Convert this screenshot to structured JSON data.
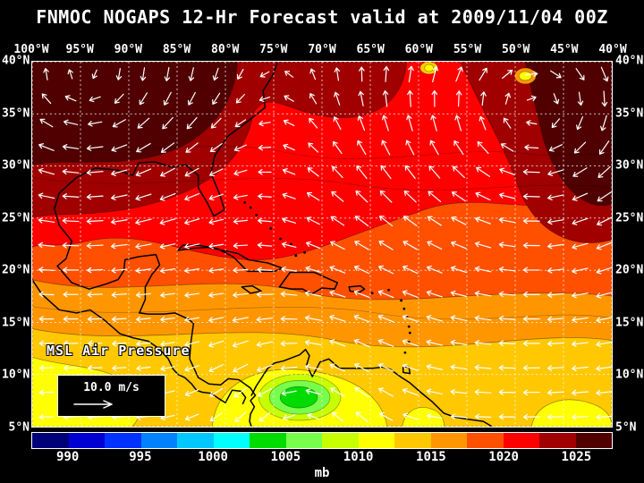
{
  "title": "FNMOC NOGAPS 12-Hr Forecast valid at 2009/11/04 00Z",
  "map": {
    "lon_labels": [
      "100°W",
      "95°W",
      "90°W",
      "85°W",
      "80°W",
      "75°W",
      "70°W",
      "65°W",
      "60°W",
      "55°W",
      "50°W",
      "45°W",
      "40°W"
    ],
    "lat_labels": [
      "40°N",
      "35°N",
      "30°N",
      "25°N",
      "20°N",
      "15°N",
      "10°N",
      "5°N"
    ],
    "overlay_label": "MSL Air Pressure",
    "wind_legend_label": "10.0 m/s"
  },
  "colorbar": {
    "unit_label": "mb",
    "min": 987.5,
    "max": 1027.5,
    "tick_labels": [
      "990",
      "995",
      "1000",
      "1005",
      "1010",
      "1015",
      "1020",
      "1025"
    ],
    "colors": [
      "#000078",
      "#0000d2",
      "#0032ff",
      "#0082ff",
      "#00c8ff",
      "#00ffff",
      "#00dc00",
      "#78ff4b",
      "#c8ff00",
      "#ffff00",
      "#ffc800",
      "#ff9600",
      "#ff5000",
      "#ff0000",
      "#a00000",
      "#500000"
    ]
  },
  "chart_data": {
    "type": "heatmap",
    "title": "FNMOC NOGAPS 12-Hr Forecast valid at 2009/11/04 00Z",
    "field_label": "MSL Air Pressure",
    "unit": "mb",
    "lon_ticks": [
      "100°W",
      "95°W",
      "90°W",
      "85°W",
      "80°W",
      "75°W",
      "70°W",
      "65°W",
      "60°W",
      "55°W",
      "50°W",
      "45°W",
      "40°W"
    ],
    "lat_ticks": [
      "40°N",
      "35°N",
      "30°N",
      "25°N",
      "20°N",
      "15°N",
      "10°N",
      "5°N"
    ],
    "colorbar_ticks_mb": [
      990,
      995,
      1000,
      1005,
      1010,
      1015,
      1020,
      1025
    ],
    "wind_reference_ms": 10.0
  }
}
